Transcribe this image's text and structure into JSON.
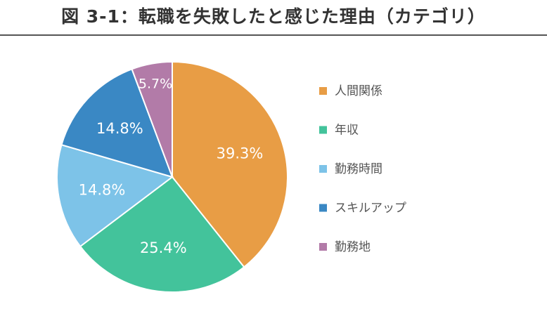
{
  "title": "図 3-1：転職を失敗したと感じた理由（カテゴリ）",
  "chart_data": {
    "type": "pie",
    "title": "図 3-1：転職を失敗したと感じた理由（カテゴリ）",
    "legend_position": "right",
    "slices": [
      {
        "label": "人間関係",
        "value": 39.3,
        "display": "39.3%",
        "color": "#E89D45"
      },
      {
        "label": "年収",
        "value": 25.4,
        "display": "25.4%",
        "color": "#43C39B"
      },
      {
        "label": "勤務時間",
        "value": 14.8,
        "display": "14.8%",
        "color": "#7DC3E8"
      },
      {
        "label": "スキルアップ",
        "value": 14.8,
        "display": "14.8%",
        "color": "#3A88C4"
      },
      {
        "label": "勤務地",
        "value": 5.7,
        "display": "5.7%",
        "color": "#B27BA8"
      }
    ]
  }
}
